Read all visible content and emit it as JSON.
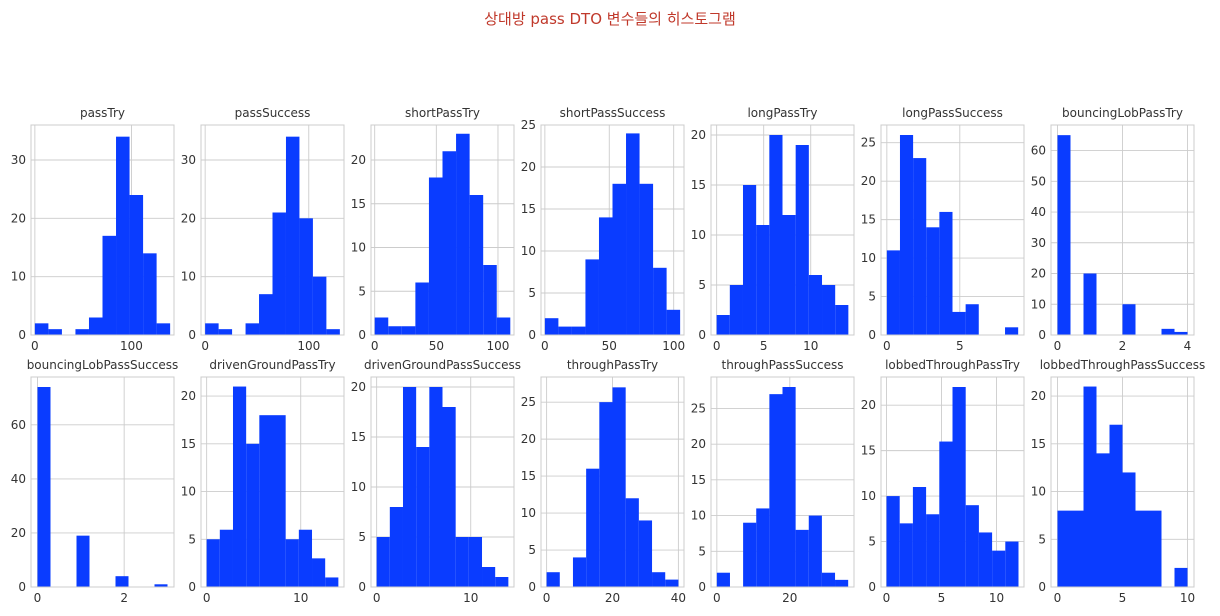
{
  "title": "상대방 pass DTO 변수들의 히스토그램",
  "colors": {
    "bar": "#0a3cff",
    "title": "#c0392b",
    "grid": "#cccccc"
  },
  "chart_data": [
    {
      "type": "bar",
      "title": "passTry",
      "bin_edges": [
        0,
        14,
        28,
        42,
        56,
        70,
        84,
        98,
        112,
        126,
        140
      ],
      "counts": [
        2,
        1,
        0,
        1,
        3,
        17,
        34,
        24,
        14,
        2
      ],
      "xticks": [
        0,
        100
      ],
      "yticks": [
        0,
        10,
        20,
        30
      ],
      "xlim": [
        -4,
        144
      ],
      "ylim": [
        0,
        36
      ],
      "grid": true
    },
    {
      "type": "bar",
      "title": "passSuccess",
      "bin_edges": [
        0,
        13,
        26,
        39,
        52,
        65,
        78,
        91,
        104,
        117,
        130
      ],
      "counts": [
        2,
        1,
        0,
        2,
        7,
        21,
        34,
        20,
        10,
        1
      ],
      "xticks": [
        0,
        100
      ],
      "yticks": [
        0,
        10,
        20,
        30
      ],
      "xlim": [
        -4,
        134
      ],
      "ylim": [
        0,
        36
      ],
      "grid": true
    },
    {
      "type": "bar",
      "title": "shortPassTry",
      "bin_edges": [
        0,
        11,
        22,
        33,
        44,
        55,
        66,
        77,
        88,
        99,
        110
      ],
      "counts": [
        2,
        1,
        1,
        6,
        18,
        21,
        23,
        16,
        8,
        2
      ],
      "xticks": [
        0,
        50,
        100
      ],
      "yticks": [
        0,
        5,
        10,
        15,
        20
      ],
      "xlim": [
        -3,
        113
      ],
      "ylim": [
        0,
        24
      ],
      "grid": true
    },
    {
      "type": "bar",
      "title": "shortPassSuccess",
      "bin_edges": [
        0,
        10.5,
        21,
        31.5,
        42,
        52.5,
        63,
        73.5,
        84,
        94.5,
        105
      ],
      "counts": [
        2,
        1,
        1,
        9,
        14,
        18,
        24,
        18,
        8,
        3
      ],
      "xticks": [
        0,
        50,
        100
      ],
      "yticks": [
        0,
        5,
        10,
        15,
        20,
        25
      ],
      "xlim": [
        -3,
        108
      ],
      "ylim": [
        0,
        25
      ],
      "grid": true
    },
    {
      "type": "bar",
      "title": "longPassTry",
      "bin_edges": [
        0,
        1.4,
        2.8,
        4.2,
        5.6,
        7,
        8.4,
        9.8,
        11.2,
        12.6,
        14
      ],
      "counts": [
        2,
        5,
        15,
        11,
        20,
        12,
        19,
        6,
        5,
        3
      ],
      "xticks": [
        0,
        5,
        10
      ],
      "yticks": [
        0,
        5,
        10,
        15,
        20
      ],
      "xlim": [
        -0.6,
        14.6
      ],
      "ylim": [
        0,
        21
      ],
      "grid": true
    },
    {
      "type": "bar",
      "title": "longPassSuccess",
      "bin_edges": [
        0,
        0.9,
        1.8,
        2.7,
        3.6,
        4.5,
        5.4,
        6.3,
        7.2,
        8.1,
        9
      ],
      "counts": [
        11,
        26,
        23,
        14,
        16,
        3,
        4,
        0,
        0,
        1
      ],
      "xticks": [
        0,
        5
      ],
      "yticks": [
        0,
        5,
        10,
        15,
        20,
        25
      ],
      "xlim": [
        -0.4,
        9.4
      ],
      "ylim": [
        0,
        27.3
      ],
      "grid": true
    },
    {
      "type": "bar",
      "title": "bouncingLobPassTry",
      "bin_edges": [
        0,
        0.4,
        0.8,
        1.2,
        1.6,
        2,
        2.4,
        2.8,
        3.2,
        3.6,
        4
      ],
      "counts": [
        65,
        0,
        20,
        0,
        0,
        10,
        0,
        0,
        2,
        1
      ],
      "xticks": [
        0,
        2,
        4
      ],
      "yticks": [
        0,
        10,
        20,
        30,
        40,
        50,
        60
      ],
      "xlim": [
        -0.2,
        4.2
      ],
      "ylim": [
        0,
        68.3
      ],
      "grid": true
    },
    {
      "type": "bar",
      "title": "bouncingLobPassSuccess",
      "bin_edges": [
        0,
        0.3,
        0.6,
        0.9,
        1.2,
        1.5,
        1.8,
        2.1,
        2.4,
        2.7,
        3
      ],
      "counts": [
        74,
        0,
        0,
        19,
        0,
        0,
        4,
        0,
        0,
        1
      ],
      "xticks": [
        0,
        2
      ],
      "yticks": [
        0,
        20,
        40,
        60
      ],
      "xlim": [
        -0.15,
        3.15
      ],
      "ylim": [
        0,
        77.7
      ],
      "grid": true
    },
    {
      "type": "bar",
      "title": "drivenGroundPassTry",
      "bin_edges": [
        0,
        1.4,
        2.8,
        4.2,
        5.6,
        7,
        8.4,
        9.8,
        11.2,
        12.6,
        14
      ],
      "counts": [
        5,
        6,
        21,
        15,
        18,
        18,
        5,
        6,
        3,
        1
      ],
      "xticks": [
        0,
        10
      ],
      "yticks": [
        0,
        5,
        10,
        15,
        20
      ],
      "xlim": [
        -0.6,
        14.6
      ],
      "ylim": [
        0,
        22
      ],
      "grid": true
    },
    {
      "type": "bar",
      "title": "drivenGroundPassSuccess",
      "bin_edges": [
        0,
        1.4,
        2.8,
        4.2,
        5.6,
        7,
        8.4,
        9.8,
        11.2,
        12.6,
        14
      ],
      "counts": [
        5,
        8,
        20,
        14,
        20,
        18,
        5,
        5,
        2,
        1
      ],
      "xticks": [
        0,
        10
      ],
      "yticks": [
        0,
        5,
        10,
        15,
        20
      ],
      "xlim": [
        -0.6,
        14.6
      ],
      "ylim": [
        0,
        21
      ],
      "grid": true
    },
    {
      "type": "bar",
      "title": "throughPassTry",
      "bin_edges": [
        0,
        4,
        8,
        12,
        16,
        20,
        24,
        28,
        32,
        36,
        40
      ],
      "counts": [
        2,
        0,
        4,
        16,
        25,
        27,
        12,
        9,
        2,
        1
      ],
      "xticks": [
        0,
        20,
        40
      ],
      "yticks": [
        0,
        5,
        10,
        15,
        20,
        25
      ],
      "xlim": [
        -1.7,
        41.7
      ],
      "ylim": [
        0,
        28.4
      ],
      "grid": true
    },
    {
      "type": "bar",
      "title": "throughPassSuccess",
      "bin_edges": [
        0,
        3.6,
        7.2,
        10.8,
        14.4,
        18,
        21.6,
        25.2,
        28.8,
        32.4,
        36
      ],
      "counts": [
        2,
        0,
        9,
        11,
        27,
        28,
        8,
        10,
        2,
        1
      ],
      "xticks": [
        0,
        20
      ],
      "yticks": [
        0,
        5,
        10,
        15,
        20,
        25
      ],
      "xlim": [
        -1.6,
        37.6
      ],
      "ylim": [
        0,
        29.4
      ],
      "grid": true
    },
    {
      "type": "bar",
      "title": "lobbedThroughPassTry",
      "bin_edges": [
        0,
        1.2,
        2.4,
        3.6,
        4.8,
        6,
        7.2,
        8.4,
        9.6,
        10.8,
        12
      ],
      "counts": [
        10,
        7,
        11,
        8,
        16,
        22,
        9,
        6,
        4,
        5
      ],
      "xticks": [
        0,
        5,
        10
      ],
      "yticks": [
        0,
        5,
        10,
        15,
        20
      ],
      "xlim": [
        -0.5,
        12.5
      ],
      "ylim": [
        0,
        23.1
      ],
      "grid": true
    },
    {
      "type": "bar",
      "title": "lobbedThroughPassSuccess",
      "bin_edges": [
        0,
        1,
        2,
        3,
        4,
        5,
        6,
        7,
        8,
        9,
        10
      ],
      "counts": [
        8,
        8,
        21,
        14,
        17,
        12,
        8,
        8,
        0,
        2
      ],
      "xticks": [
        0,
        5,
        10
      ],
      "yticks": [
        0,
        5,
        10,
        15,
        20
      ],
      "xlim": [
        -0.5,
        10.5
      ],
      "ylim": [
        0,
        22
      ],
      "grid": true
    }
  ]
}
